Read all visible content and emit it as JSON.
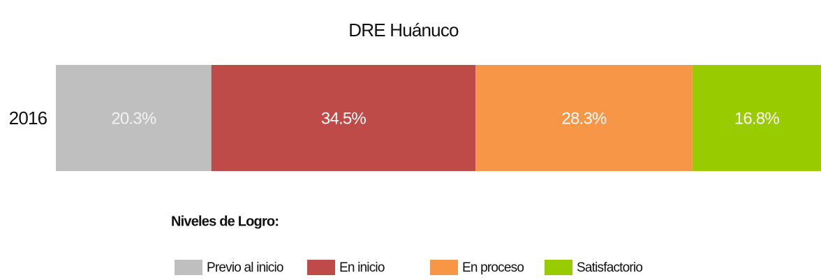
{
  "chart_data": {
    "type": "stacked_bar_horizontal",
    "title": "DRE Huánuco",
    "categories": [
      "2016"
    ],
    "legend_title": "Niveles de Logro:",
    "series": [
      {
        "name": "Previo al inicio",
        "color": "#bfbfbf",
        "values": [
          20.3
        ],
        "value_labels": [
          "20.3%"
        ]
      },
      {
        "name": "En inicio",
        "color": "#be4b48",
        "values": [
          34.5
        ],
        "value_labels": [
          "34.5%"
        ]
      },
      {
        "name": "En proceso",
        "color": "#f79646",
        "values": [
          28.3
        ],
        "value_labels": [
          "28.3%"
        ]
      },
      {
        "name": "Satisfactorio",
        "color": "#99cc00",
        "values": [
          16.8
        ],
        "value_labels": [
          "16.8%"
        ]
      }
    ]
  }
}
